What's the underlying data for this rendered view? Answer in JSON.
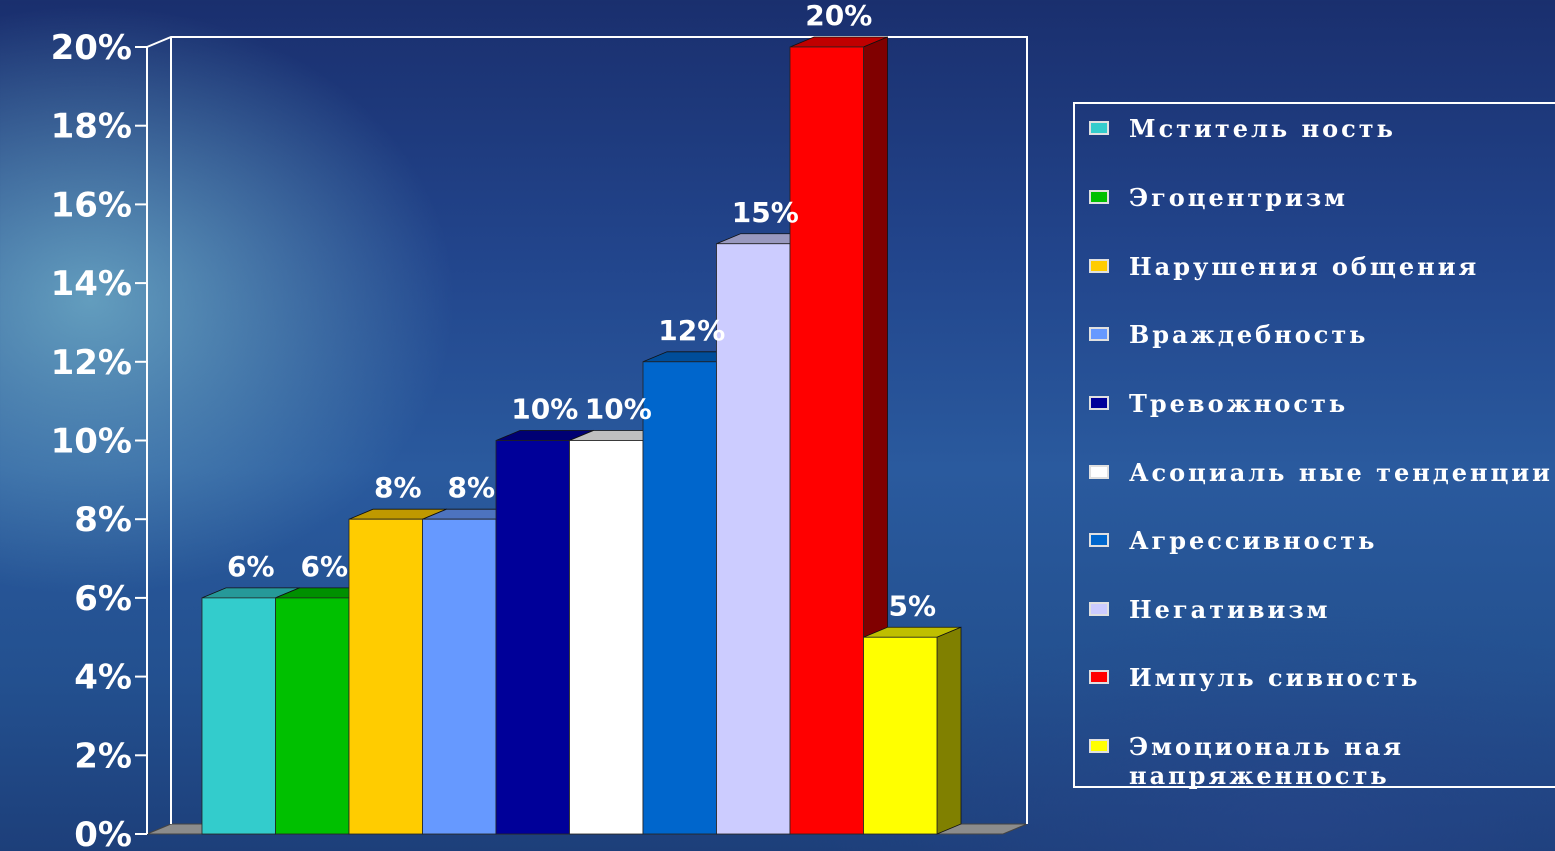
{
  "chart_data": {
    "type": "bar",
    "categories": [
      "Мститель ность",
      "Эгоцентризм",
      "Нарушения общения",
      "Враждебность",
      "Тревожность",
      "Асоциаль ные тенденции",
      "Агрессивность",
      "Негативизм",
      "Импуль сивность",
      "Эмоциональ ная напряженность"
    ],
    "values": [
      6,
      6,
      8,
      8,
      10,
      10,
      12,
      15,
      20,
      5
    ],
    "data_labels": [
      "6%",
      "6%",
      "8%",
      "8%",
      "10%",
      "10%",
      "12%",
      "15%",
      "20%",
      "5%"
    ],
    "colors": [
      "#33cccc",
      "#00c000",
      "#ffcc00",
      "#6699ff",
      "#000099",
      "#ffffff",
      "#0066cc",
      "#ccccff",
      "#ff0000",
      "#ffff00"
    ],
    "y_ticks": [
      "0%",
      "2%",
      "4%",
      "6%",
      "8%",
      "10%",
      "12%",
      "14%",
      "16%",
      "18%",
      "20%"
    ],
    "ylim": [
      0,
      20
    ],
    "legend_position": "right",
    "style": "3d-clustered"
  }
}
